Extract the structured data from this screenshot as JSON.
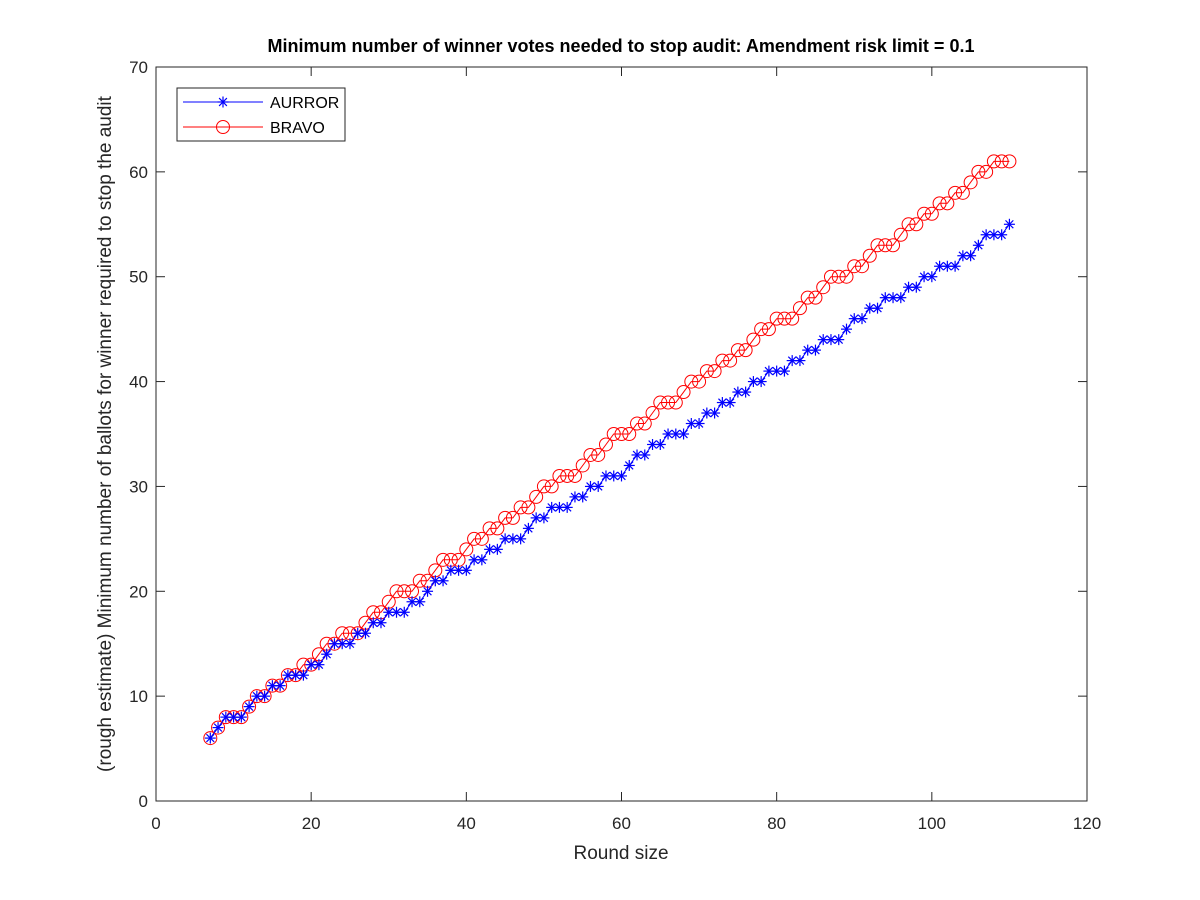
{
  "chart_data": {
    "type": "line",
    "title": "Minimum number of winner votes needed to stop audit: Amendment risk limit = 0.1",
    "xlabel": "Round size",
    "ylabel": "(rough estimate) Minimum number of ballots for winner required to stop the audit",
    "xlim": [
      0,
      120
    ],
    "ylim": [
      0,
      70
    ],
    "xticks": [
      0,
      20,
      40,
      60,
      80,
      100,
      120
    ],
    "yticks": [
      0,
      10,
      20,
      30,
      40,
      50,
      60,
      70
    ],
    "grid": false,
    "legend_position": "top-left",
    "x": [
      7,
      8,
      9,
      10,
      11,
      12,
      13,
      14,
      15,
      16,
      17,
      18,
      19,
      20,
      21,
      22,
      23,
      24,
      25,
      26,
      27,
      28,
      29,
      30,
      31,
      32,
      33,
      34,
      35,
      36,
      37,
      38,
      39,
      40,
      41,
      42,
      43,
      44,
      45,
      46,
      47,
      48,
      49,
      50,
      51,
      52,
      53,
      54,
      55,
      56,
      57,
      58,
      59,
      60,
      61,
      62,
      63,
      64,
      65,
      66,
      67,
      68,
      69,
      70,
      71,
      72,
      73,
      74,
      75,
      76,
      77,
      78,
      79,
      80,
      81,
      82,
      83,
      84,
      85,
      86,
      87,
      88,
      89,
      90,
      91,
      92,
      93,
      94,
      95,
      96,
      97,
      98,
      99,
      100,
      101,
      102,
      103,
      104,
      105,
      106,
      107,
      108,
      109,
      110
    ],
    "series": [
      {
        "name": "AURROR",
        "color": "#0000ff",
        "marker": "asterisk",
        "values": [
          6,
          7,
          8,
          8,
          8,
          9,
          10,
          10,
          11,
          11,
          12,
          12,
          12,
          13,
          13,
          14,
          15,
          15,
          15,
          16,
          16,
          17,
          17,
          18,
          18,
          18,
          19,
          19,
          20,
          21,
          21,
          22,
          22,
          22,
          23,
          23,
          24,
          24,
          25,
          25,
          25,
          26,
          27,
          27,
          28,
          28,
          28,
          29,
          29,
          30,
          30,
          31,
          31,
          31,
          32,
          33,
          33,
          34,
          34,
          35,
          35,
          35,
          36,
          36,
          37,
          37,
          38,
          38,
          39,
          39,
          40,
          40,
          41,
          41,
          41,
          42,
          42,
          43,
          43,
          44,
          44,
          44,
          45,
          46,
          46,
          47,
          47,
          48,
          48,
          48,
          49,
          49,
          50,
          50,
          51,
          51,
          51,
          52,
          52,
          53,
          54,
          54,
          54,
          55
        ]
      },
      {
        "name": "BRAVO",
        "color": "#ff0000",
        "marker": "circle",
        "values": [
          6,
          7,
          8,
          8,
          8,
          9,
          10,
          10,
          11,
          11,
          12,
          12,
          13,
          13,
          14,
          15,
          15,
          16,
          16,
          16,
          17,
          18,
          18,
          19,
          20,
          20,
          20,
          21,
          21,
          22,
          23,
          23,
          23,
          24,
          25,
          25,
          26,
          26,
          27,
          27,
          28,
          28,
          29,
          30,
          30,
          31,
          31,
          31,
          32,
          33,
          33,
          34,
          35,
          35,
          35,
          36,
          36,
          37,
          38,
          38,
          38,
          39,
          40,
          40,
          41,
          41,
          42,
          42,
          43,
          43,
          44,
          45,
          45,
          46,
          46,
          46,
          47,
          48,
          48,
          49,
          50,
          50,
          50,
          51,
          51,
          52,
          53,
          53,
          53,
          54,
          55,
          55,
          56,
          56,
          57,
          57,
          58,
          58,
          59,
          60,
          60,
          61,
          61,
          61
        ]
      }
    ]
  }
}
